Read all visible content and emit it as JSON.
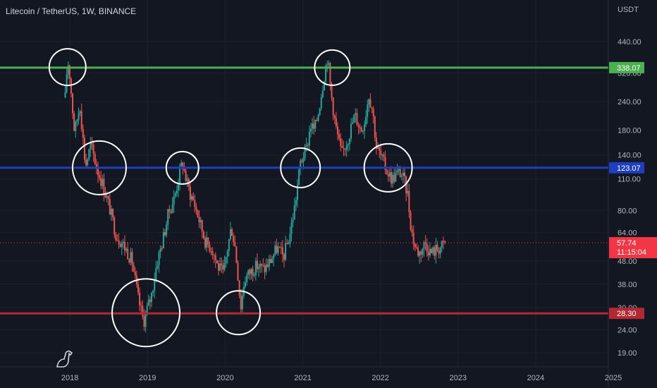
{
  "header": {
    "title": "Litecoin / TetherUS, 1W, BINANCE",
    "unit": "USDT"
  },
  "colors": {
    "background": "#131722",
    "grid": "#1e222d",
    "up": "#26a69a",
    "down": "#ef5350",
    "green_line": "#4caf50",
    "blue_line": "#1e3fbf",
    "red_line": "#b22833",
    "current_price": "#f23645"
  },
  "chart_data": {
    "type": "candlestick",
    "y_scale": "log",
    "y_ticks": [
      "19.00",
      "24.00",
      "30.00",
      "38.00",
      "48.00",
      "64.00",
      "80.00",
      "110.00",
      "140.00",
      "180.00",
      "240.00",
      "320.00",
      "440.00"
    ],
    "y_tick_values": [
      19,
      24,
      30,
      38,
      48,
      64,
      80,
      110,
      140,
      180,
      240,
      320,
      440
    ],
    "ylim": [
      16.5,
      560
    ],
    "x_ticks": [
      "2018",
      "2019",
      "2020",
      "2021",
      "2022",
      "2023",
      "2024",
      "2025"
    ],
    "x_tick_values": [
      2018,
      2019,
      2020,
      2021,
      2022,
      2023,
      2024,
      2025
    ],
    "xlim": [
      2017.1,
      2025.2
    ],
    "horizontal_lines": [
      {
        "value": 338.07,
        "label": "338.07",
        "color": "#4caf50"
      },
      {
        "value": 123.07,
        "label": "123.07",
        "color": "#1e3fbf"
      },
      {
        "value": 28.3,
        "label": "28.30",
        "color": "#b22833"
      }
    ],
    "current_price": {
      "value": 57.74,
      "label": "57.74",
      "countdown": "11:15:04"
    },
    "price_path": [
      [
        2017.94,
        250
      ],
      [
        2017.97,
        370
      ],
      [
        2018.0,
        310
      ],
      [
        2018.06,
        175
      ],
      [
        2018.13,
        235
      ],
      [
        2018.2,
        125
      ],
      [
        2018.27,
        155
      ],
      [
        2018.35,
        122
      ],
      [
        2018.42,
        105
      ],
      [
        2018.5,
        85
      ],
      [
        2018.6,
        62
      ],
      [
        2018.67,
        58
      ],
      [
        2018.75,
        52
      ],
      [
        2018.8,
        48
      ],
      [
        2018.88,
        33
      ],
      [
        2018.95,
        26
      ],
      [
        2019.0,
        30
      ],
      [
        2019.05,
        34
      ],
      [
        2019.12,
        47
      ],
      [
        2019.2,
        60
      ],
      [
        2019.27,
        78
      ],
      [
        2019.35,
        92
      ],
      [
        2019.42,
        120
      ],
      [
        2019.45,
        130
      ],
      [
        2019.5,
        108
      ],
      [
        2019.55,
        95
      ],
      [
        2019.6,
        87
      ],
      [
        2019.68,
        70
      ],
      [
        2019.75,
        58
      ],
      [
        2019.83,
        55
      ],
      [
        2019.9,
        46
      ],
      [
        2019.98,
        42
      ],
      [
        2020.02,
        52
      ],
      [
        2020.08,
        68
      ],
      [
        2020.13,
        55
      ],
      [
        2020.17,
        40
      ],
      [
        2020.2,
        30
      ],
      [
        2020.25,
        40
      ],
      [
        2020.32,
        43
      ],
      [
        2020.42,
        46
      ],
      [
        2020.5,
        44
      ],
      [
        2020.58,
        48
      ],
      [
        2020.67,
        55
      ],
      [
        2020.75,
        50
      ],
      [
        2020.83,
        62
      ],
      [
        2020.9,
        85
      ],
      [
        2020.97,
        130
      ],
      [
        2021.05,
        150
      ],
      [
        2021.1,
        190
      ],
      [
        2021.15,
        180
      ],
      [
        2021.2,
        215
      ],
      [
        2021.28,
        320
      ],
      [
        2021.32,
        380
      ],
      [
        2021.36,
        270
      ],
      [
        2021.42,
        190
      ],
      [
        2021.5,
        140
      ],
      [
        2021.58,
        165
      ],
      [
        2021.67,
        210
      ],
      [
        2021.75,
        180
      ],
      [
        2021.8,
        200
      ],
      [
        2021.85,
        260
      ],
      [
        2021.9,
        220
      ],
      [
        2021.95,
        150
      ],
      [
        2022.0,
        140
      ],
      [
        2022.08,
        120
      ],
      [
        2022.15,
        110
      ],
      [
        2022.2,
        115
      ],
      [
        2022.25,
        118
      ],
      [
        2022.3,
        110
      ],
      [
        2022.35,
        95
      ],
      [
        2022.4,
        65
      ],
      [
        2022.45,
        55
      ],
      [
        2022.5,
        52
      ],
      [
        2022.58,
        58
      ],
      [
        2022.65,
        52
      ],
      [
        2022.72,
        54
      ],
      [
        2022.8,
        56
      ],
      [
        2022.84,
        57.74
      ]
    ]
  }
}
